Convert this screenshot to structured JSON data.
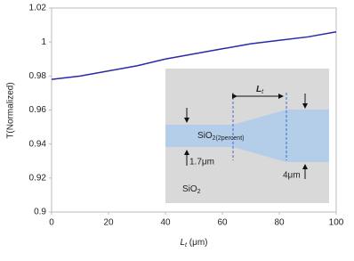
{
  "chart_data": {
    "type": "line",
    "x_label": {
      "main": "L",
      "sub": "t",
      "unit": " (μm)"
    },
    "y_label": "T(Normalized)",
    "x": [
      0,
      10,
      20,
      30,
      40,
      50,
      60,
      70,
      80,
      90,
      100
    ],
    "series": [
      {
        "color": "#2a2aa8",
        "values": [
          0.978,
          0.98,
          0.983,
          0.986,
          0.99,
          0.993,
          0.996,
          0.999,
          1.001,
          1.003,
          1.006
        ]
      }
    ],
    "xlim": [
      0,
      100
    ],
    "xticks": [
      0,
      20,
      40,
      60,
      80,
      100
    ],
    "ylim": [
      0.9,
      1.02
    ],
    "yticks": [
      0.9,
      0.92,
      0.94,
      0.96,
      0.98,
      1,
      1.02
    ],
    "grid": false,
    "inset": {
      "taper_length": {
        "main": "L",
        "sub": "t"
      },
      "core": {
        "main": "SiO",
        "sub": "2(2percent)"
      },
      "input_width": "1.7μm",
      "output_width": "4μm",
      "cladding": {
        "main": "SiO",
        "sub": "2"
      }
    }
  }
}
